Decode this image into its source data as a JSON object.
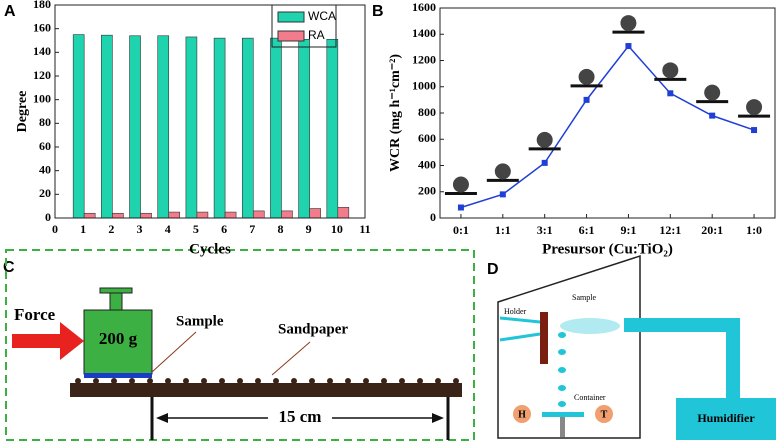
{
  "panels": [
    "A",
    "B",
    "C",
    "D"
  ],
  "chart_data": [
    {
      "type": "bar",
      "x": [
        1,
        2,
        3,
        4,
        5,
        6,
        7,
        8,
        9,
        10
      ],
      "series": [
        {
          "name": "WCA",
          "color": "#1fd3ae",
          "values": [
            155,
            154.5,
            154,
            154,
            153,
            152,
            152,
            152,
            151,
            151
          ]
        },
        {
          "name": "RA",
          "color": "#f27b8c",
          "values": [
            4,
            4,
            4,
            5,
            5,
            5,
            6,
            6,
            8,
            9
          ]
        }
      ],
      "xlim": [
        0,
        11
      ],
      "xticks": [
        0,
        1,
        2,
        3,
        4,
        5,
        6,
        7,
        8,
        9,
        10,
        11
      ],
      "ylim": [
        0,
        180
      ],
      "yticks": [
        0,
        20,
        40,
        60,
        80,
        100,
        120,
        140,
        160,
        180
      ],
      "x_label": "Cycles",
      "y_label": "Degree",
      "legend": "top-right"
    },
    {
      "type": "line",
      "categories": [
        "0:1",
        "1:1",
        "3:1",
        "6:1",
        "9:1",
        "12:1",
        "20:1",
        "1:0"
      ],
      "values": [
        80,
        180,
        420,
        900,
        1310,
        950,
        780,
        670
      ],
      "color": "#1f3fd6",
      "ylim": [
        0,
        1600
      ],
      "yticks": [
        0,
        200,
        400,
        600,
        800,
        1000,
        1200,
        1400,
        1600
      ],
      "x_label": "Presursor (Cu:TiO₂)",
      "y_label": "WCR (mg h⁻¹cm⁻²)"
    }
  ],
  "diagram_c": {
    "force": "Force",
    "weight": "200 g",
    "sample": "Sample",
    "sandpaper": "Sandpaper",
    "distance": "15 cm"
  },
  "diagram_d": {
    "sample": "Sample",
    "holder": "Holder",
    "container": "Container",
    "h": "H",
    "t": "T",
    "humidifier": "Humidifier"
  }
}
